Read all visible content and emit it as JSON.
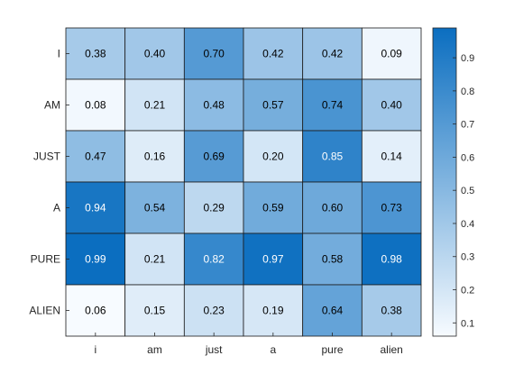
{
  "chart_data": {
    "type": "heatmap",
    "title": "",
    "xlabel": "",
    "ylabel": "",
    "x_categories": [
      "i",
      "am",
      "just",
      "a",
      "pure",
      "alien"
    ],
    "y_categories": [
      "I",
      "AM",
      "JUST",
      "A",
      "PURE",
      "ALIEN"
    ],
    "values": [
      [
        0.38,
        0.4,
        0.7,
        0.42,
        0.42,
        0.09
      ],
      [
        0.08,
        0.21,
        0.48,
        0.57,
        0.74,
        0.4
      ],
      [
        0.47,
        0.16,
        0.69,
        0.2,
        0.85,
        0.14
      ],
      [
        0.94,
        0.54,
        0.29,
        0.59,
        0.6,
        0.73
      ],
      [
        0.99,
        0.21,
        0.82,
        0.97,
        0.58,
        0.98
      ],
      [
        0.06,
        0.15,
        0.23,
        0.19,
        0.64,
        0.38
      ]
    ],
    "color_range": [
      0.06,
      0.99
    ],
    "colormap": {
      "low": "#f7fbff",
      "high": "#0b6ec0"
    },
    "cell_label_color_dark": "#000000",
    "cell_label_color_light": "#ffffff",
    "colorbar": {
      "ticks": [
        "0.1",
        "0.2",
        "0.3",
        "0.4",
        "0.5",
        "0.6",
        "0.7",
        "0.8",
        "0.9"
      ],
      "tick_values": [
        0.1,
        0.2,
        0.3,
        0.4,
        0.5,
        0.6,
        0.7,
        0.8,
        0.9
      ]
    },
    "grid": true,
    "legend": "colorbar-right"
  }
}
